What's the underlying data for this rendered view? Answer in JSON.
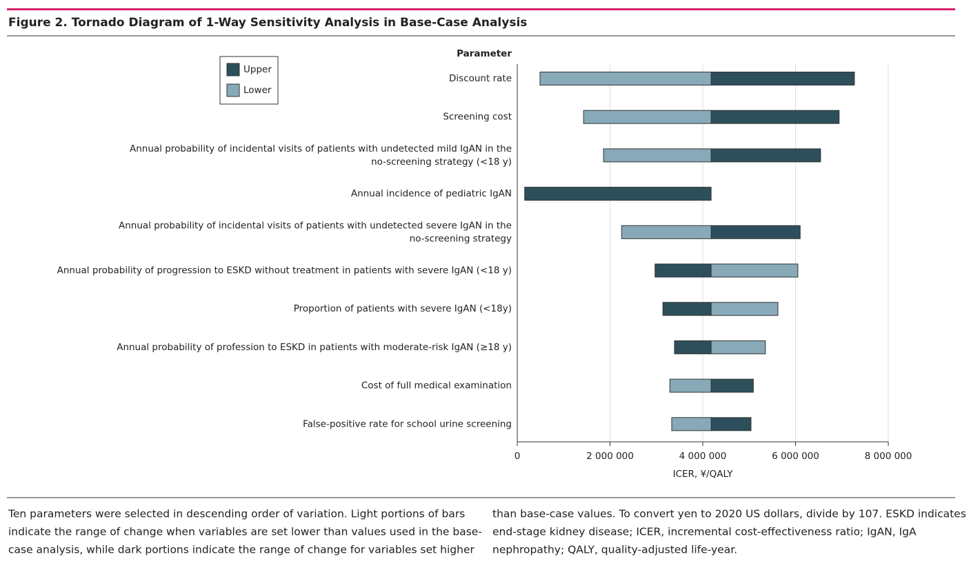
{
  "figure_title": "Figure 2. Tornado Diagram of 1-Way Sensitivity Analysis in Base-Case Analysis",
  "chart_data": {
    "type": "tornado",
    "category_header": "Parameter",
    "xlabel": "ICER, ¥/QALY",
    "categories": [
      [
        "Discount rate"
      ],
      [
        "Screening cost"
      ],
      [
        "Annual probability of incidental visits of patients with undetected mild IgAN in the",
        "no-screening strategy (<18 y)"
      ],
      [
        "Annual incidence of pediatric IgAN"
      ],
      [
        "Annual probability of incidental visits of patients with undetected severe IgAN in the",
        "no-screening strategy"
      ],
      [
        "Annual probability of progression to ESKD without treatment in patients with severe IgAN (<18 y)"
      ],
      [
        "Proportion of patients with severe IgAN (<18y)"
      ],
      [
        "Annual probability of profession to ESKD in patients with moderate-risk IgAN (≥18 y)"
      ],
      [
        "Cost of full medical examination"
      ],
      [
        "False-positive rate for school urine screening"
      ]
    ],
    "base_value": 4180000,
    "series": [
      {
        "name": "Upper",
        "color": "#2d4f5c",
        "values": [
          7270000,
          6940000,
          6540000,
          160000,
          6100000,
          2970000,
          3140000,
          3390000,
          5090000,
          5040000
        ]
      },
      {
        "name": "Lower",
        "color": "#87a9b8",
        "values": [
          490000,
          1430000,
          1860000,
          4180000,
          2250000,
          6050000,
          5620000,
          5350000,
          3290000,
          3330000
        ]
      }
    ],
    "xlim": [
      0,
      8000000
    ],
    "xticks": [
      0,
      {
        "value": 2000000,
        "label": "2 000 000"
      },
      {
        "value": 4000000,
        "label": "4 000 000"
      },
      {
        "value": 6000000,
        "label": "6 000 000"
      },
      {
        "value": 8000000,
        "label": "8 000 000"
      }
    ],
    "grid": true,
    "legend": "upper left"
  },
  "caption_lines": [
    [
      "Ten parameters were selected in descending order of variation. Light portions of bars",
      "indicate the range of change when variables are set lower than values used in the base-",
      "case analysis, while dark portions indicate the range of change for variables set higher"
    ],
    [
      "than base-case values. To convert yen to 2020 US dollars, divide by 107. ESKD indicates",
      "end-stage kidney disease; ICER, incremental cost-effectiveness ratio; IgAN, IgA",
      "nephropathy; QALY, quality-adjusted life-year."
    ]
  ]
}
